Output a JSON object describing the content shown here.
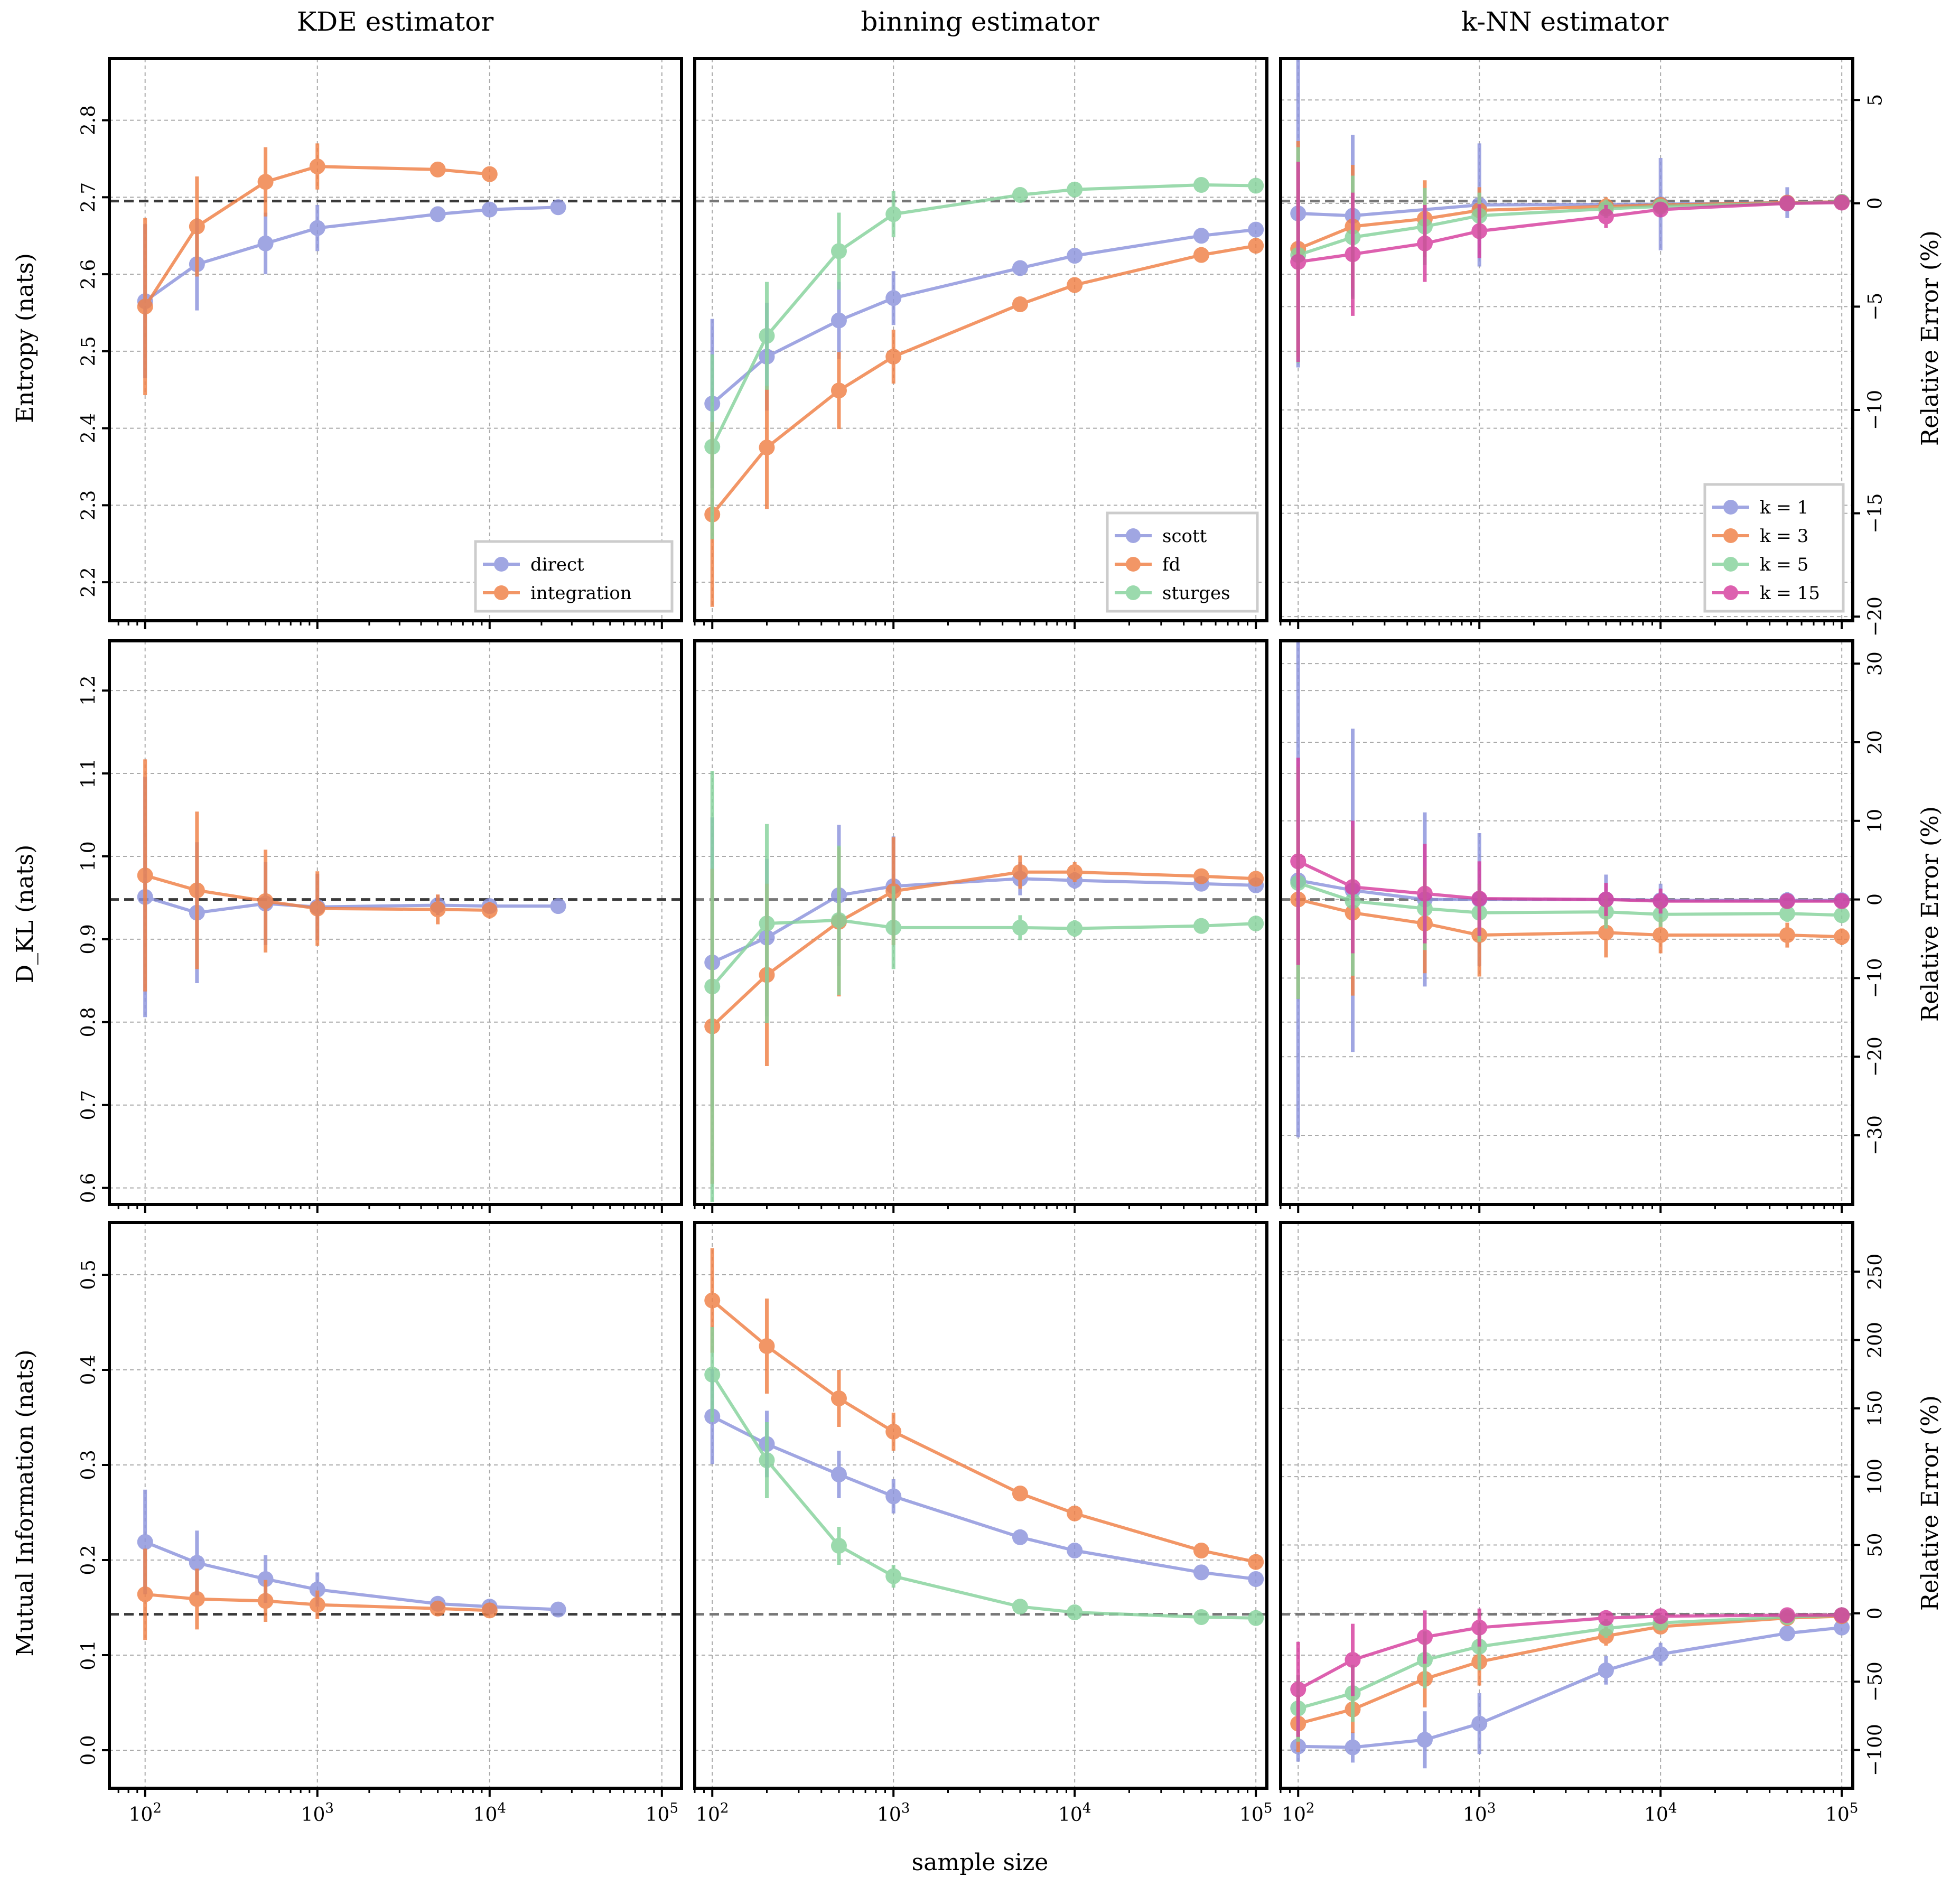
{
  "column_titles": [
    "KDE estimator",
    "binning estimator",
    "k-NN estimator"
  ],
  "xlabel": "sample size",
  "row_ylabels": [
    "Entropy (nats)",
    "D_KL (nats)",
    "Mutual Information (nats)"
  ],
  "right_ylabel": "Relative Error (%)",
  "x_tick_labels": [
    "10^2",
    "10^3",
    "10^4",
    "10^5"
  ],
  "colors": {
    "blue": "#8c93dc",
    "orange": "#f07f45",
    "green": "#86d29c",
    "pink": "#d63e9e",
    "reference": "#3a3a3a",
    "grid": "#aaaaaa"
  },
  "chart_data": [
    {
      "id": "entropy-kde",
      "type": "line",
      "xscale": "log",
      "xlim": [
        62,
        130000
      ],
      "ylim": [
        2.15,
        2.88
      ],
      "yticks": [
        "2.2",
        "2.3",
        "2.4",
        "2.5",
        "2.6",
        "2.7",
        "2.8"
      ],
      "reference": 2.695,
      "legend": "lower-right",
      "series": [
        {
          "name": "direct",
          "color": "blue",
          "x": [
            100,
            200,
            500,
            1000,
            5000,
            10000,
            25000
          ],
          "y": [
            2.565,
            2.613,
            2.64,
            2.66,
            2.678,
            2.684,
            2.687
          ],
          "err": [
            0.1,
            0.06,
            0.04,
            0.03,
            0.01,
            0.005,
            0.004
          ]
        },
        {
          "name": "integration",
          "color": "orange",
          "x": [
            100,
            200,
            500,
            1000,
            5000,
            10000
          ],
          "y": [
            2.558,
            2.662,
            2.72,
            2.74,
            2.736,
            2.73
          ],
          "err": [
            0.115,
            0.065,
            0.045,
            0.03,
            0.01,
            0.007
          ]
        }
      ]
    },
    {
      "id": "entropy-binning",
      "type": "line",
      "xscale": "log",
      "xlim": [
        80,
        115000
      ],
      "ylim": [
        2.15,
        2.88
      ],
      "yticks": [],
      "reference": 2.695,
      "legend": "lower-right",
      "series": [
        {
          "name": "scott",
          "color": "blue",
          "x": [
            100,
            200,
            500,
            1000,
            5000,
            10000,
            50000,
            100000
          ],
          "y": [
            2.432,
            2.493,
            2.54,
            2.569,
            2.608,
            2.624,
            2.65,
            2.658
          ],
          "err": [
            0.11,
            0.07,
            0.05,
            0.035,
            0.01,
            0.007,
            0.004,
            0.003
          ]
        },
        {
          "name": "fd",
          "color": "orange",
          "x": [
            100,
            200,
            500,
            1000,
            5000,
            10000,
            50000,
            100000
          ],
          "y": [
            2.288,
            2.375,
            2.449,
            2.493,
            2.561,
            2.586,
            2.625,
            2.637
          ],
          "err": [
            0.12,
            0.08,
            0.05,
            0.035,
            0.01,
            0.007,
            0.004,
            0.003
          ]
        },
        {
          "name": "sturges",
          "color": "green",
          "x": [
            100,
            200,
            500,
            1000,
            5000,
            10000,
            50000,
            100000
          ],
          "y": [
            2.376,
            2.52,
            2.63,
            2.678,
            2.703,
            2.71,
            2.716,
            2.715
          ],
          "err": [
            0.12,
            0.07,
            0.05,
            0.03,
            0.01,
            0.007,
            0.004,
            0.003
          ]
        }
      ]
    },
    {
      "id": "entropy-knn",
      "type": "line",
      "xscale": "log",
      "xlim": [
        80,
        115000
      ],
      "ylim": [
        2.15,
        2.88
      ],
      "yticks": [],
      "reference": 2.695,
      "right_ylim": [
        -20.2,
        7.0
      ],
      "right_yticks": [
        "−20",
        "−15",
        "−10",
        "−5",
        "0",
        "5"
      ],
      "legend": "lower-right",
      "series": [
        {
          "name": "k = 1",
          "color": "blue",
          "x": [
            100,
            200,
            1000,
            10000,
            50000,
            100000
          ],
          "y": [
            2.679,
            2.676,
            2.69,
            2.691,
            2.693,
            2.694
          ],
          "err": [
            0.2,
            0.105,
            0.08,
            0.06,
            0.02,
            0.008
          ]
        },
        {
          "name": "k = 3",
          "color": "orange",
          "x": [
            100,
            200,
            500,
            1000,
            5000,
            10000,
            50000,
            100000
          ],
          "y": [
            2.633,
            2.662,
            2.672,
            2.683,
            2.688,
            2.69,
            2.693,
            2.694
          ],
          "err": [
            0.14,
            0.08,
            0.05,
            0.03,
            0.012,
            0.008,
            0.005,
            0.003
          ]
        },
        {
          "name": "k = 5",
          "color": "green",
          "x": [
            100,
            200,
            500,
            1000,
            5000,
            10000,
            50000,
            100000
          ],
          "y": [
            2.625,
            2.648,
            2.662,
            2.676,
            2.685,
            2.688,
            2.692,
            2.694
          ],
          "err": [
            0.14,
            0.08,
            0.05,
            0.03,
            0.012,
            0.008,
            0.005,
            0.003
          ]
        },
        {
          "name": "k = 15",
          "color": "pink",
          "x": [
            100,
            200,
            500,
            1000,
            5000,
            10000,
            50000,
            100000
          ],
          "y": [
            2.616,
            2.626,
            2.64,
            2.656,
            2.675,
            2.684,
            2.692,
            2.693
          ],
          "err": [
            0.13,
            0.08,
            0.05,
            0.035,
            0.015,
            0.01,
            0.005,
            0.003
          ]
        }
      ]
    },
    {
      "id": "dkl-kde",
      "type": "line",
      "xscale": "log",
      "xlim": [
        62,
        130000
      ],
      "ylim": [
        0.58,
        1.26
      ],
      "yticks": [
        "0.6",
        "0.7",
        "0.8",
        "0.9",
        "1.0",
        "1.1",
        "1.2"
      ],
      "reference": 0.948,
      "series": [
        {
          "name": "direct",
          "color": "blue",
          "x": [
            100,
            200,
            500,
            1000,
            5000,
            10000,
            25000
          ],
          "y": [
            0.951,
            0.932,
            0.943,
            0.939,
            0.941,
            0.94,
            0.94
          ],
          "err": [
            0.145,
            0.085,
            0.05,
            0.04,
            0.012,
            0.006,
            0.004
          ]
        },
        {
          "name": "integration",
          "color": "orange",
          "x": [
            100,
            200,
            500,
            1000,
            5000,
            10000
          ],
          "y": [
            0.977,
            0.959,
            0.946,
            0.937,
            0.936,
            0.935
          ],
          "err": [
            0.14,
            0.095,
            0.062,
            0.045,
            0.018,
            0.01
          ]
        }
      ]
    },
    {
      "id": "dkl-binning",
      "type": "line",
      "xscale": "log",
      "xlim": [
        80,
        115000
      ],
      "ylim": [
        0.58,
        1.26
      ],
      "yticks": [],
      "reference": 0.948,
      "series": [
        {
          "name": "scott",
          "color": "blue",
          "x": [
            100,
            200,
            500,
            1000,
            5000,
            10000,
            50000,
            100000
          ],
          "y": [
            0.872,
            0.902,
            0.953,
            0.964,
            0.973,
            0.971,
            0.967,
            0.965
          ],
          "err": [
            0.175,
            0.095,
            0.085,
            0.06,
            0.02,
            0.01,
            0.005,
            0.004
          ]
        },
        {
          "name": "fd",
          "color": "orange",
          "x": [
            100,
            200,
            500,
            1000,
            5000,
            10000,
            50000,
            100000
          ],
          "y": [
            0.795,
            0.857,
            0.921,
            0.958,
            0.981,
            0.981,
            0.976,
            0.973
          ],
          "err": [
            0.19,
            0.11,
            0.09,
            0.065,
            0.02,
            0.012,
            0.006,
            0.004
          ]
        },
        {
          "name": "sturges",
          "color": "green",
          "x": [
            100,
            200,
            500,
            1000,
            5000,
            10000,
            50000,
            100000
          ],
          "y": [
            0.843,
            0.919,
            0.923,
            0.914,
            0.914,
            0.913,
            0.916,
            0.919
          ],
          "err": [
            0.26,
            0.12,
            0.09,
            0.05,
            0.015,
            0.01,
            0.006,
            0.004
          ]
        }
      ]
    },
    {
      "id": "dkl-knn",
      "type": "line",
      "xscale": "log",
      "xlim": [
        80,
        115000
      ],
      "ylim": [
        0.58,
        1.26
      ],
      "yticks": [],
      "reference": 0.948,
      "right_ylim": [
        -38.8,
        32.9
      ],
      "right_yticks": [
        "−30",
        "−20",
        "−10",
        "0",
        "10",
        "20",
        "30"
      ],
      "series": [
        {
          "name": "k = 1",
          "color": "blue",
          "x": [
            100,
            200,
            500,
            1000,
            5000,
            10000,
            50000,
            100000
          ],
          "y": [
            0.971,
            0.959,
            0.948,
            0.948,
            0.948,
            0.947,
            0.947,
            0.947
          ],
          "err": [
            0.31,
            0.195,
            0.105,
            0.08,
            0.03,
            0.02,
            0.01,
            0.006
          ]
        },
        {
          "name": "k = 3",
          "color": "orange",
          "x": [
            100,
            200,
            500,
            1000,
            5000,
            10000,
            50000,
            100000
          ],
          "y": [
            0.948,
            0.932,
            0.919,
            0.905,
            0.908,
            0.905,
            0.905,
            0.903
          ],
          "err": [
            0.12,
            0.1,
            0.06,
            0.05,
            0.03,
            0.022,
            0.015,
            0.01
          ]
        },
        {
          "name": "k = 5",
          "color": "green",
          "x": [
            100,
            200,
            500,
            1000,
            5000,
            10000,
            50000,
            100000
          ],
          "y": [
            0.968,
            0.946,
            0.937,
            0.932,
            0.933,
            0.93,
            0.931,
            0.929
          ],
          "err": [
            0.14,
            0.09,
            0.05,
            0.035,
            0.02,
            0.015,
            0.01,
            0.006
          ]
        },
        {
          "name": "k = 15",
          "color": "pink",
          "x": [
            100,
            200,
            500,
            1000,
            5000,
            10000,
            50000,
            100000
          ],
          "y": [
            0.994,
            0.963,
            0.955,
            0.949,
            0.948,
            0.946,
            0.946,
            0.946
          ],
          "err": [
            0.125,
            0.08,
            0.06,
            0.045,
            0.02,
            0.015,
            0.008,
            0.005
          ]
        }
      ]
    },
    {
      "id": "mi-kde",
      "type": "line",
      "xscale": "log",
      "xlim": [
        62,
        130000
      ],
      "ylim": [
        -0.04,
        0.555
      ],
      "yticks": [
        "0.0",
        "0.1",
        "0.2",
        "0.3",
        "0.4",
        "0.5"
      ],
      "reference": 0.143,
      "series": [
        {
          "name": "direct",
          "color": "blue",
          "x": [
            100,
            200,
            500,
            1000,
            5000,
            10000,
            25000
          ],
          "y": [
            0.219,
            0.197,
            0.18,
            0.169,
            0.154,
            0.151,
            0.148
          ],
          "err": [
            0.055,
            0.034,
            0.025,
            0.018,
            0.006,
            0.004,
            0.003
          ]
        },
        {
          "name": "integration",
          "color": "orange",
          "x": [
            100,
            200,
            500,
            1000,
            5000,
            10000
          ],
          "y": [
            0.164,
            0.159,
            0.157,
            0.153,
            0.149,
            0.147
          ],
          "err": [
            0.048,
            0.032,
            0.022,
            0.015,
            0.006,
            0.004
          ]
        }
      ]
    },
    {
      "id": "mi-binning",
      "type": "line",
      "xscale": "log",
      "xlim": [
        80,
        115000
      ],
      "ylim": [
        -0.04,
        0.555
      ],
      "yticks": [],
      "reference": 0.143,
      "series": [
        {
          "name": "scott",
          "color": "blue",
          "x": [
            100,
            200,
            500,
            1000,
            5000,
            10000,
            50000,
            100000
          ],
          "y": [
            0.351,
            0.322,
            0.29,
            0.267,
            0.224,
            0.21,
            0.187,
            0.18
          ],
          "err": [
            0.05,
            0.035,
            0.025,
            0.018,
            0.007,
            0.005,
            0.003,
            0.002
          ]
        },
        {
          "name": "fd",
          "color": "orange",
          "x": [
            100,
            200,
            500,
            1000,
            5000,
            10000,
            50000,
            100000
          ],
          "y": [
            0.473,
            0.425,
            0.37,
            0.335,
            0.27,
            0.249,
            0.21,
            0.198
          ],
          "err": [
            0.055,
            0.05,
            0.03,
            0.02,
            0.007,
            0.005,
            0.003,
            0.002
          ]
        },
        {
          "name": "sturges",
          "color": "green",
          "x": [
            100,
            200,
            500,
            1000,
            5000,
            10000,
            50000,
            100000
          ],
          "y": [
            0.395,
            0.305,
            0.215,
            0.183,
            0.151,
            0.145,
            0.14,
            0.139
          ],
          "err": [
            0.05,
            0.04,
            0.02,
            0.012,
            0.006,
            0.004,
            0.002,
            0.002
          ]
        }
      ]
    },
    {
      "id": "mi-knn",
      "type": "line",
      "xscale": "log",
      "xlim": [
        80,
        115000
      ],
      "ylim": [
        -0.04,
        0.555
      ],
      "yticks": [],
      "reference": 0.143,
      "right_ylim": [
        -128,
        286
      ],
      "right_yticks": [
        "−100",
        "−50",
        "0",
        "50",
        "100",
        "150",
        "200",
        "250"
      ],
      "series": [
        {
          "name": "k = 1",
          "color": "blue",
          "x": [
            100,
            200,
            500,
            1000,
            5000,
            10000,
            50000,
            100000
          ],
          "y": [
            0.004,
            0.003,
            0.011,
            0.028,
            0.084,
            0.101,
            0.123,
            0.129
          ],
          "err": [
            0.016,
            0.016,
            0.03,
            0.032,
            0.015,
            0.012,
            0.005,
            0.004
          ]
        },
        {
          "name": "k = 3",
          "color": "orange",
          "x": [
            100,
            200,
            500,
            1000,
            5000,
            10000,
            50000,
            100000
          ],
          "y": [
            0.028,
            0.043,
            0.075,
            0.093,
            0.12,
            0.13,
            0.139,
            0.141
          ],
          "err": [
            0.03,
            0.025,
            0.03,
            0.025,
            0.01,
            0.007,
            0.004,
            0.003
          ]
        },
        {
          "name": "k = 5",
          "color": "green",
          "x": [
            100,
            200,
            500,
            1000,
            5000,
            10000,
            50000,
            100000
          ],
          "y": [
            0.044,
            0.06,
            0.095,
            0.109,
            0.128,
            0.134,
            0.14,
            0.142
          ],
          "err": [
            0.035,
            0.03,
            0.03,
            0.025,
            0.01,
            0.007,
            0.004,
            0.003
          ]
        },
        {
          "name": "k = 15",
          "color": "pink",
          "x": [
            100,
            200,
            500,
            1000,
            5000,
            10000,
            50000,
            100000
          ],
          "y": [
            0.064,
            0.095,
            0.119,
            0.129,
            0.139,
            0.141,
            0.142,
            0.142
          ],
          "err": [
            0.05,
            0.038,
            0.028,
            0.02,
            0.008,
            0.006,
            0.003,
            0.002
          ]
        }
      ]
    }
  ]
}
